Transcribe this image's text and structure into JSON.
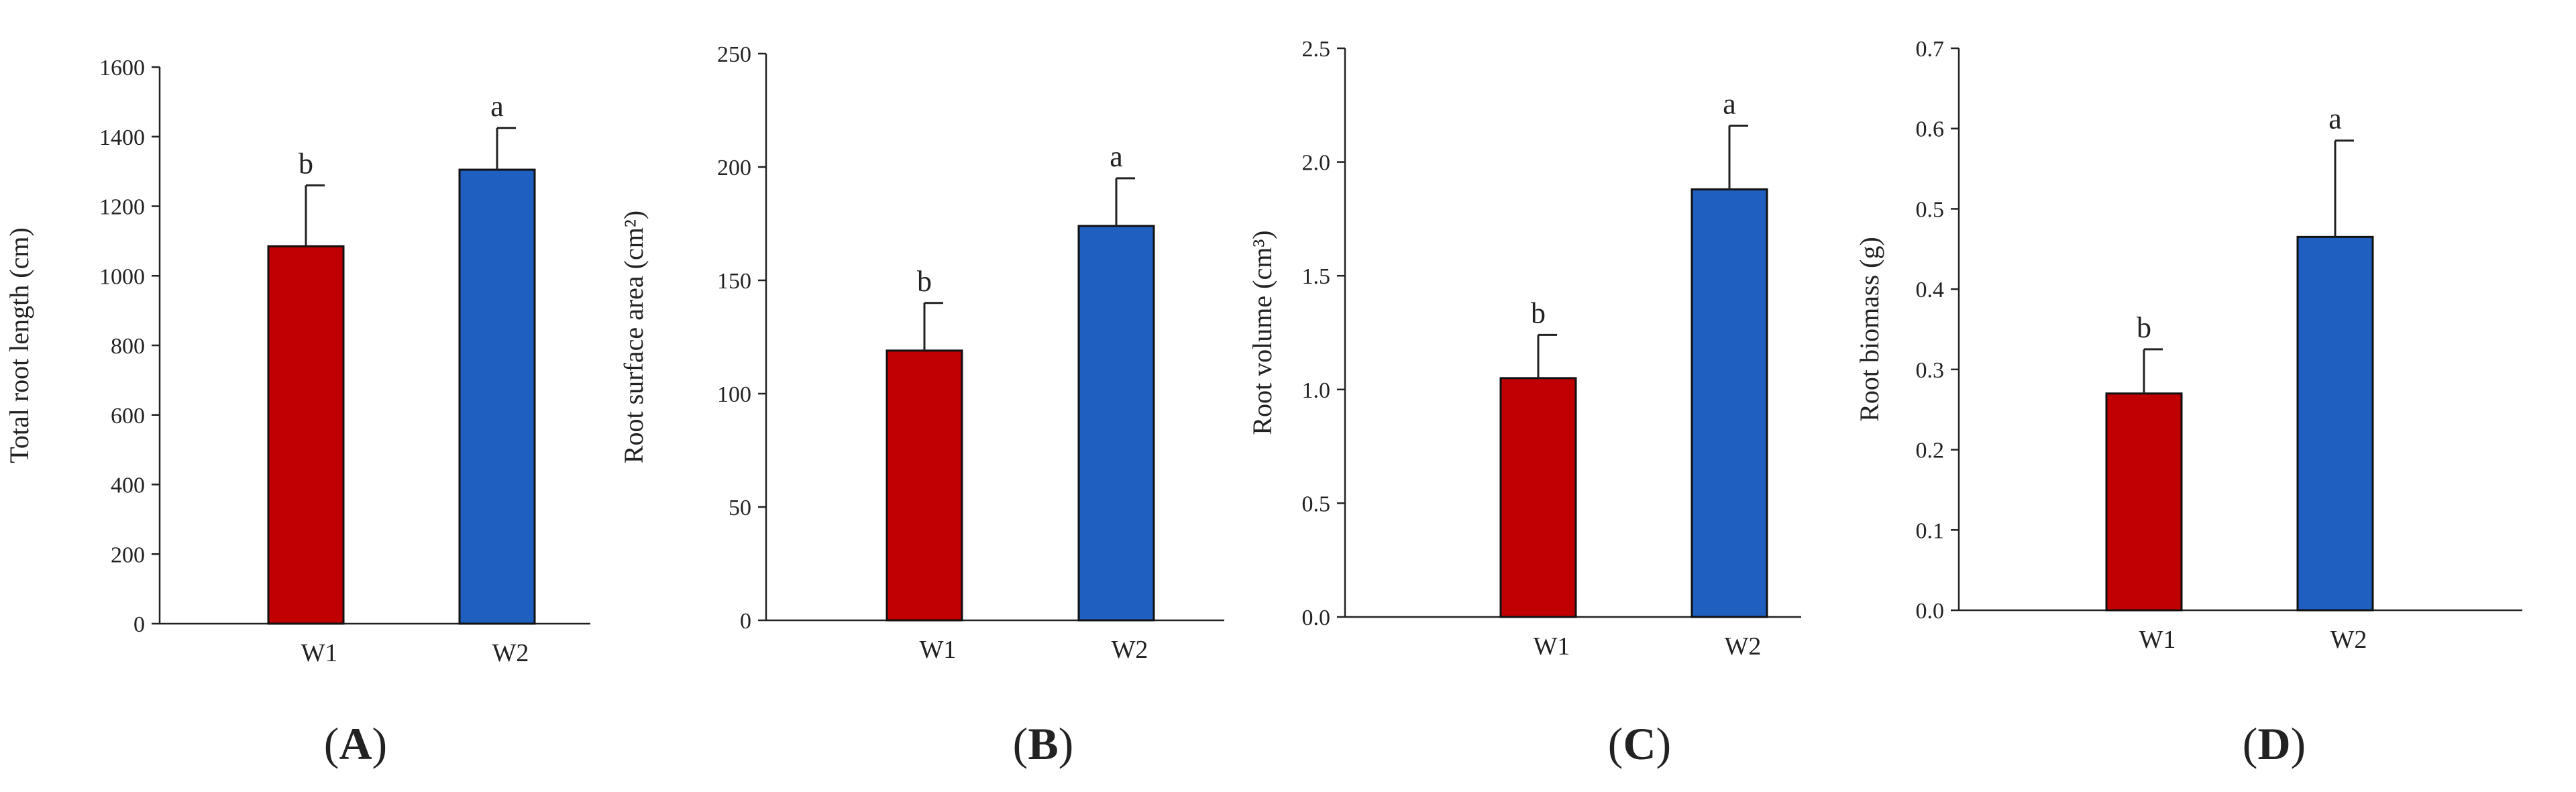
{
  "chart_data": [
    {
      "type": "bar",
      "panel": "A",
      "ylabel": "Total root length (cm)",
      "ylim": [
        0,
        1600
      ],
      "yticks": [
        0,
        200,
        400,
        600,
        800,
        1000,
        1200,
        1400,
        1600
      ],
      "categories": [
        "W1",
        "W2"
      ],
      "values": [
        1085,
        1305
      ],
      "errors": [
        175,
        120
      ],
      "significance": [
        "b",
        "a"
      ],
      "colors": [
        "#c00000",
        "#1f5fbf"
      ]
    },
    {
      "type": "bar",
      "panel": "B",
      "ylabel": "Root surface area (cm²)",
      "ylim": [
        0,
        250
      ],
      "yticks": [
        0,
        50,
        100,
        150,
        200,
        250
      ],
      "categories": [
        "W1",
        "W2"
      ],
      "values": [
        119,
        174
      ],
      "errors": [
        21,
        21
      ],
      "significance": [
        "b",
        "a"
      ],
      "colors": [
        "#c00000",
        "#1f5fbf"
      ]
    },
    {
      "type": "bar",
      "panel": "C",
      "ylabel": "Root volume (cm³)",
      "ylim": [
        0,
        2.5
      ],
      "yticks": [
        "0.0",
        "0.5",
        "1.0",
        "1.5",
        "2.0",
        "2.5"
      ],
      "categories": [
        "W1",
        "W2"
      ],
      "values": [
        1.05,
        1.88
      ],
      "errors": [
        0.19,
        0.28
      ],
      "significance": [
        "b",
        "a"
      ],
      "colors": [
        "#c00000",
        "#1f5fbf"
      ]
    },
    {
      "type": "bar",
      "panel": "D",
      "ylabel": "Root biomass (g)",
      "ylim": [
        0,
        0.7
      ],
      "yticks": [
        "0.0",
        "0.1",
        "0.2",
        "0.3",
        "0.4",
        "0.5",
        "0.6",
        "0.7"
      ],
      "categories": [
        "W1",
        "W2"
      ],
      "values": [
        0.27,
        0.465
      ],
      "errors": [
        0.055,
        0.12
      ],
      "significance": [
        "b",
        "a"
      ],
      "colors": [
        "#c00000",
        "#1f5fbf"
      ]
    }
  ]
}
